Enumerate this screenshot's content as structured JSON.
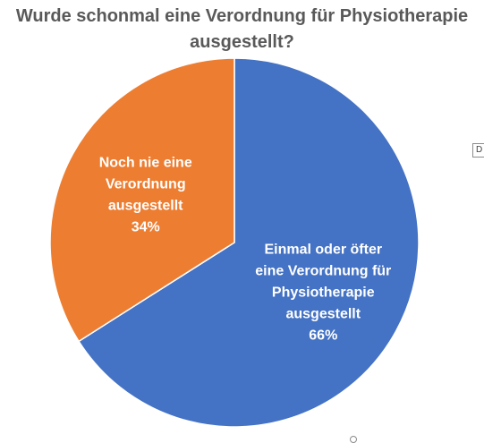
{
  "chart_data": {
    "type": "pie",
    "title_lines": [
      "Wurde schonmal eine Verordnung für Physiotherapie",
      "ausgestellt?"
    ],
    "slices": [
      {
        "label_lines": [
          "Einmal oder öfter",
          "eine Verordnung für",
          "Physiotherapie",
          "ausgestellt"
        ],
        "percent_label": "66%",
        "value": 66,
        "color": "#4472C4"
      },
      {
        "label_lines": [
          "Noch nie eine",
          "Verordnung",
          "ausgestellt"
        ],
        "percent_label": "34%",
        "value": 34,
        "color": "#ED7D31"
      }
    ],
    "start_angle_deg": 0,
    "direction": "clockwise"
  },
  "ui": {
    "edge_tag_text": "D"
  }
}
